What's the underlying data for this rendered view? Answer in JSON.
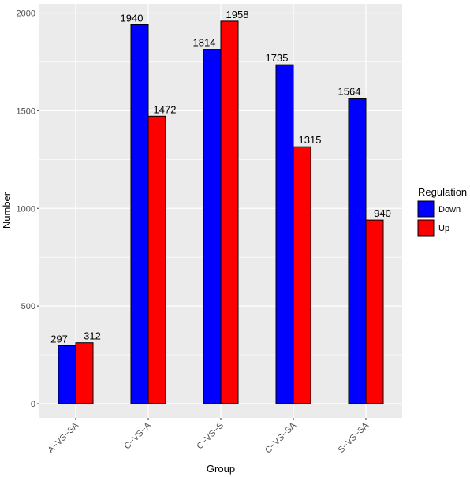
{
  "chart_data": {
    "type": "bar",
    "title": "",
    "xlabel": "Group",
    "ylabel": "Number",
    "categories": [
      "A−VS−SA",
      "C−VS−A",
      "C−VS−S",
      "C−VS−SA",
      "S−VS−SA"
    ],
    "series": [
      {
        "name": "Down",
        "values": [
          297,
          1940,
          1814,
          1735,
          1564
        ],
        "color": "#0000ff"
      },
      {
        "name": "Up",
        "values": [
          312,
          1472,
          1958,
          1315,
          940
        ],
        "color": "#ff0000"
      }
    ],
    "ylim": [
      -80,
      2020
    ],
    "yticks": [
      0,
      500,
      1000,
      1500,
      2000
    ],
    "grid": true,
    "legend": {
      "title": "Regulation",
      "position": "right"
    },
    "colors": {
      "panel_background": "#ebebeb",
      "grid": "#ffffff",
      "bar_outline": "#000000"
    }
  }
}
